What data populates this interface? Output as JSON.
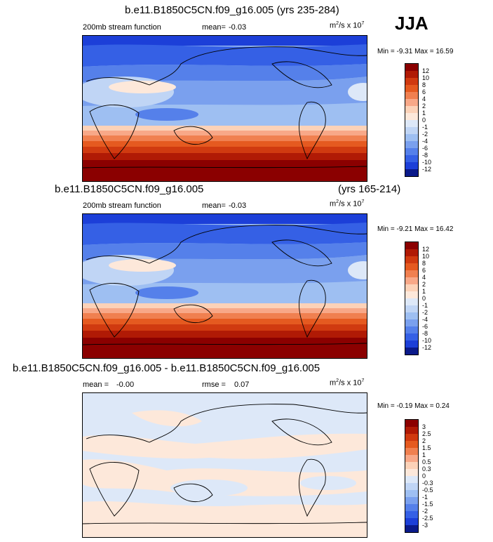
{
  "season": "JJA",
  "units": {
    "base": "m",
    "sup1": "2",
    "mid": "/s x 10",
    "sup2": "7"
  },
  "chart_data": [
    {
      "type": "heatmap",
      "title": "b.e11.B1850C5CN.f09_g16.005 (yrs 235-284)",
      "variable": "200mb stream function",
      "mean_label": "mean=",
      "mean": "-0.03",
      "minmax": "Min =  -9.31 Max =  16.59",
      "colorbar": {
        "levels": [
          "12",
          "10",
          "8",
          "6",
          "4",
          "2",
          "1",
          "0",
          "-1",
          "-2",
          "-4",
          "-6",
          "-8",
          "-10",
          "-12"
        ],
        "colors": [
          "#8b0000",
          "#b01a05",
          "#d03a10",
          "#e55a20",
          "#f08050",
          "#f8a888",
          "#fcd2b8",
          "#fde8da",
          "#dde8f8",
          "#c0d5f5",
          "#9ebff2",
          "#7aa0ee",
          "#5580ea",
          "#3560e5",
          "#1c3fd8",
          "#0a1a8a"
        ]
      }
    },
    {
      "type": "heatmap",
      "title": "b.e11.B1850C5CN.f09_g16.005",
      "title_right": "(yrs 165-214)",
      "variable": "200mb stream function",
      "mean_label": "mean=",
      "mean": "-0.03",
      "minmax": "Min =  -9.21 Max =  16.42",
      "colorbar": {
        "levels": [
          "12",
          "10",
          "8",
          "6",
          "4",
          "2",
          "1",
          "0",
          "-1",
          "-2",
          "-4",
          "-6",
          "-8",
          "-10",
          "-12"
        ],
        "colors": [
          "#8b0000",
          "#b01a05",
          "#d03a10",
          "#e55a20",
          "#f08050",
          "#f8a888",
          "#fcd2b8",
          "#fde8da",
          "#dde8f8",
          "#c0d5f5",
          "#9ebff2",
          "#7aa0ee",
          "#5580ea",
          "#3560e5",
          "#1c3fd8",
          "#0a1a8a"
        ]
      }
    },
    {
      "type": "heatmap",
      "title": "b.e11.B1850C5CN.f09_g16.005 - b.e11.B1850C5CN.f09_g16.005",
      "mean_label": "mean =",
      "mean": "-0.00",
      "rmse_label": "rmse =",
      "rmse": "0.07",
      "minmax": "Min =  -0.19 Max =   0.24",
      "colorbar": {
        "levels": [
          "3",
          "2.5",
          "2",
          "1.5",
          "1",
          "0.5",
          "0.3",
          "0",
          "-0.3",
          "-0.5",
          "-1",
          "-1.5",
          "-2",
          "-2.5",
          "-3"
        ],
        "colors": [
          "#8b0000",
          "#b01a05",
          "#d03a10",
          "#e55a20",
          "#f08050",
          "#f8a888",
          "#fcd2b8",
          "#fde8da",
          "#dde8f8",
          "#c0d5f5",
          "#9ebff2",
          "#7aa0ee",
          "#5580ea",
          "#3560e5",
          "#1c3fd8",
          "#0a1a8a"
        ]
      }
    }
  ]
}
